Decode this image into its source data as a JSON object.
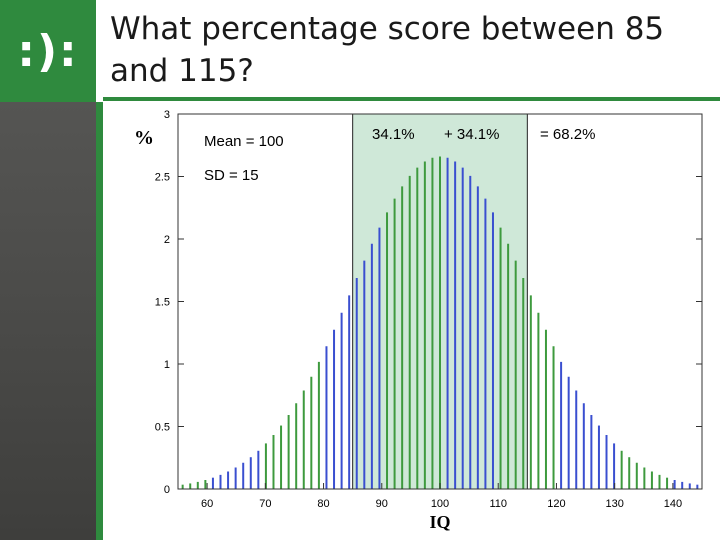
{
  "slide": {
    "title": "What percentage score between 85 and 115?",
    "logo": ":):"
  },
  "colors": {
    "accent_green": "#2f8a3e",
    "bar_green": "#3e9a3e",
    "bar_blue": "#3a4fd0",
    "highlight_fill": "#cfe8d8"
  },
  "chart_data": {
    "type": "bar",
    "xlabel": "IQ",
    "ylabel": "%",
    "xlim": [
      55,
      145
    ],
    "ylim": [
      0,
      3
    ],
    "xticks": [
      "60",
      "70",
      "80",
      "90",
      "100",
      "110",
      "120",
      "130",
      "140"
    ],
    "yticks": [
      "0",
      "0.5",
      "1",
      "1.5",
      "2",
      "2.5",
      "3"
    ],
    "distribution": {
      "mean": 100,
      "sd": 15,
      "bar_spacing": 1.3,
      "first_bar": 55.8
    },
    "highlight_range": [
      85,
      115
    ],
    "annotations": {
      "mean": "Mean = 100",
      "sd": "SD = 15",
      "pct_left": "34.1%",
      "pct_right": "+ 34.1%",
      "pct_total": "= 68.2%"
    }
  }
}
